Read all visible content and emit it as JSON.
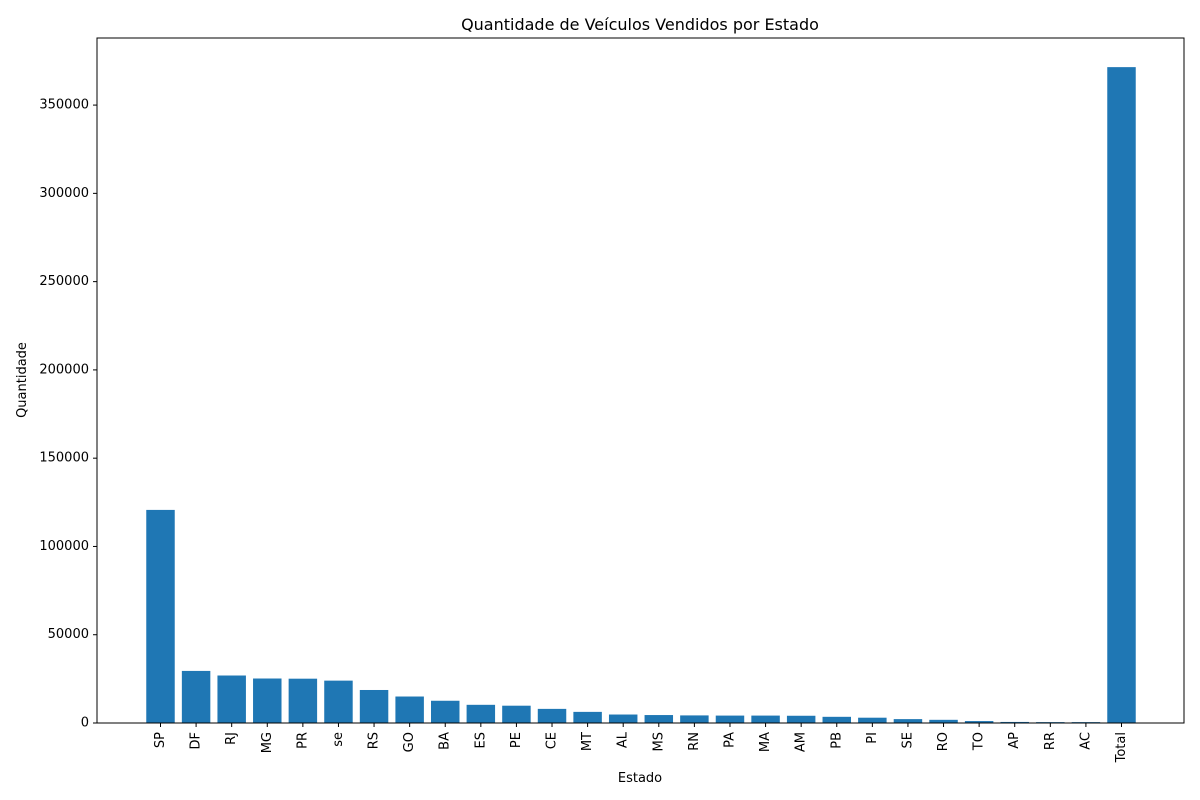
{
  "chart_data": {
    "type": "bar",
    "title": "Quantidade de Veículos Vendidos por Estado",
    "xlabel": "Estado",
    "ylabel": "Quantidade",
    "categories": [
      "SP",
      "DF",
      "RJ",
      "MG",
      "PR",
      "se",
      "RS",
      "GO",
      "BA",
      "ES",
      "PE",
      "CE",
      "MT",
      "AL",
      "MS",
      "RN",
      "PA",
      "MA",
      "AM",
      "PB",
      "PI",
      "SE",
      "RO",
      "TO",
      "AP",
      "RR",
      "AC",
      "Total"
    ],
    "values": [
      120700,
      29500,
      26900,
      25200,
      25100,
      24000,
      18700,
      15000,
      12600,
      10300,
      9800,
      8000,
      6300,
      4800,
      4500,
      4300,
      4200,
      4200,
      4100,
      3500,
      3000,
      2200,
      1800,
      1100,
      600,
      500,
      500,
      371500
    ],
    "ylim": [
      0,
      388000
    ],
    "yticks": [
      0,
      50000,
      100000,
      150000,
      200000,
      250000,
      300000,
      350000
    ],
    "grid": false,
    "bar_color": "#1f77b4"
  }
}
